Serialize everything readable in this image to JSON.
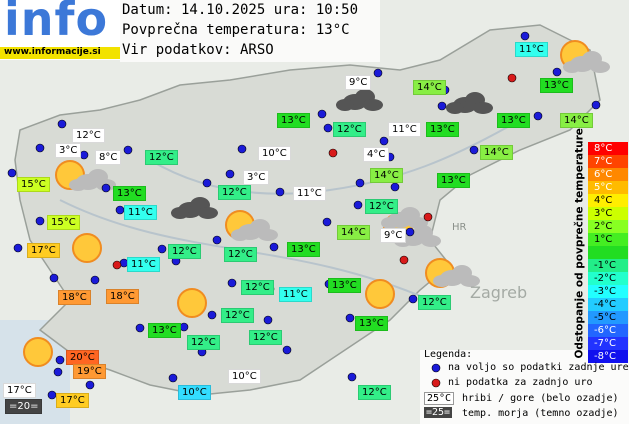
{
  "header": {
    "logo": "info",
    "website": "www.informacije.si",
    "date_line": "Datum: 14.10.2025 ura: 10:50",
    "avg_line": "Povprečna temperatura: 13°C",
    "source_line": "Vir podatkov: ARSO"
  },
  "map": {
    "labels": [
      "Zagreb",
      "HR"
    ]
  },
  "stations": [
    "11°C",
    "13°C",
    "14°C",
    "9°C",
    "13°C",
    "14°C",
    "13°C",
    "12°C",
    "11°C",
    "13°C",
    "12°C",
    "3°C",
    "8°C",
    "12°C",
    "10°C",
    "4°C",
    "14°C",
    "15°C",
    "13°C",
    "12°C",
    "3°C",
    "11°C",
    "14°C",
    "13°C",
    "11°C",
    "12°C",
    "15°C",
    "14°C",
    "9°C",
    "17°C",
    "12°C",
    "12°C",
    "13°C",
    "11°C",
    "13°C",
    "12°C",
    "11°C",
    "18°C",
    "18°C",
    "12°C",
    "12°C",
    "13°C",
    "13°C",
    "12°C",
    "12°C",
    "20°C",
    "19°C",
    "10°C",
    "17°C",
    "10°C",
    "12°C",
    "=20=",
    "17°C"
  ],
  "scale": {
    "title": "Odstopanje od povprečne temperature:",
    "labels": [
      "8°C",
      "7°C",
      "6°C",
      "5°C",
      "4°C",
      "3°C",
      "2°C",
      "1°C",
      null,
      "-1°C",
      "-2°C",
      "-3°C",
      "-4°C",
      "-5°C",
      "-6°C",
      "-7°C",
      "-8°C"
    ]
  },
  "legend": {
    "title": "Legenda:",
    "available": "na voljo so podatki zadnje ure",
    "missing": "ni podatka za zadnjo uro",
    "mountain_sample": "25°C",
    "mountain_text": "hribi / gore (belo ozadje)",
    "sea_sample": "=25=",
    "sea_text": "temp. morja (temno ozadje)"
  }
}
